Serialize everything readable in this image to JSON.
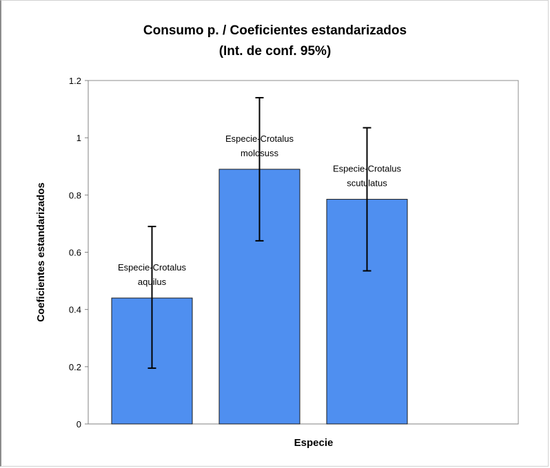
{
  "chart_data": {
    "type": "bar",
    "title_lines": [
      "Consumo p. / Coeficientes estandarizados",
      "(Int. de conf. 95%)"
    ],
    "xlabel": "Especie",
    "ylabel": "Coeficientes estandarizados",
    "ylim": [
      0,
      1.2
    ],
    "yticks": [
      "0",
      "0.2",
      "0.4",
      "0.6",
      "0.8",
      "1",
      "1.2"
    ],
    "grid": false,
    "bar_color": "#4f8ff0",
    "categories": [
      "Especie-Crotalus aquilus",
      "Especie-Crotalus molosuss",
      "Especie-Crotalus scutulatus"
    ],
    "label_lines": [
      [
        "Especie-Crotalus",
        "aquilus"
      ],
      [
        "Especie-Crotalus",
        "molosuss"
      ],
      [
        "Especie-Crotalus",
        "scutulatus"
      ]
    ],
    "values": [
      0.44,
      0.89,
      0.785
    ],
    "ci_low": [
      0.195,
      0.64,
      0.535
    ],
    "ci_high": [
      0.69,
      1.14,
      1.035
    ]
  }
}
